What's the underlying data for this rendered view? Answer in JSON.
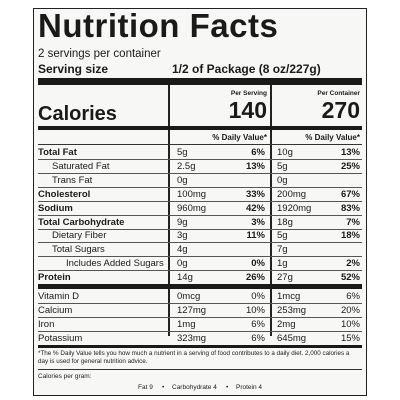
{
  "title": "Nutrition Facts",
  "servings": "2 servings per container",
  "serving_size": {
    "label": "Serving size",
    "value": "1/2 of Package (8 oz/227g)"
  },
  "columns": [
    "Per Serving",
    "Per Container"
  ],
  "calories": {
    "label": "Calories",
    "per_serving": 140,
    "per_container": 270
  },
  "daily_value_header": "% Daily Value*",
  "nutrients": [
    {
      "name": "Total Fat",
      "serving_amount": "5g",
      "serving_dv": "6%",
      "container_amount": "10g",
      "container_dv": "13%"
    },
    {
      "name": "Saturated Fat",
      "serving_amount": "2.5g",
      "serving_dv": "13%",
      "container_amount": "5g",
      "container_dv": "25%"
    },
    {
      "name": "Trans Fat",
      "serving_amount": "0g",
      "container_amount": "0g"
    },
    {
      "name": "Cholesterol",
      "serving_amount": "100mg",
      "serving_dv": "33%",
      "container_amount": "200mg",
      "container_dv": "67%"
    },
    {
      "name": "Sodium",
      "serving_amount": "960mg",
      "serving_dv": "42%",
      "container_amount": "1920mg",
      "container_dv": "83%"
    },
    {
      "name": "Total Carbohydrate",
      "serving_amount": "9g",
      "serving_dv": "3%",
      "container_amount": "18g",
      "container_dv": "7%"
    },
    {
      "name": "Dietary Fiber",
      "serving_amount": "3g",
      "serving_dv": "11%",
      "container_amount": "5g",
      "container_dv": "18%"
    },
    {
      "name": "Total Sugars",
      "serving_amount": "4g",
      "container_amount": "7g"
    },
    {
      "name": "Includes Added Sugars",
      "serving_amount": "0g",
      "serving_dv": "0%",
      "container_amount": "1g",
      "container_dv": "2%"
    },
    {
      "name": "Protein",
      "serving_amount": "14g",
      "serving_dv": "26%",
      "container_amount": "27g",
      "container_dv": "52%"
    }
  ],
  "vitamins": [
    {
      "name": "Vitamin D",
      "serving_amount": "0mcg",
      "serving_dv": "0%",
      "container_amount": "1mcg",
      "container_dv": "6%"
    },
    {
      "name": "Calcium",
      "serving_amount": "127mg",
      "serving_dv": "10%",
      "container_amount": "253mg",
      "container_dv": "20%"
    },
    {
      "name": "Iron",
      "serving_amount": "1mg",
      "serving_dv": "6%",
      "container_amount": "2mg",
      "container_dv": "10%"
    },
    {
      "name": "Potassium",
      "serving_amount": "323mg",
      "serving_dv": "6%",
      "container_amount": "645mg",
      "container_dv": "15%"
    }
  ],
  "footnote": "*The % Daily Value tells you how much a nutrient in a serving of food contributes to a daily diet. 2,000 calories a day is used for general nutrition advice.",
  "calories_per_gram": {
    "label": "Calories per gram:",
    "items": [
      "Fat 9",
      "Carbohydrate 4",
      "Protein 4"
    ]
  }
}
